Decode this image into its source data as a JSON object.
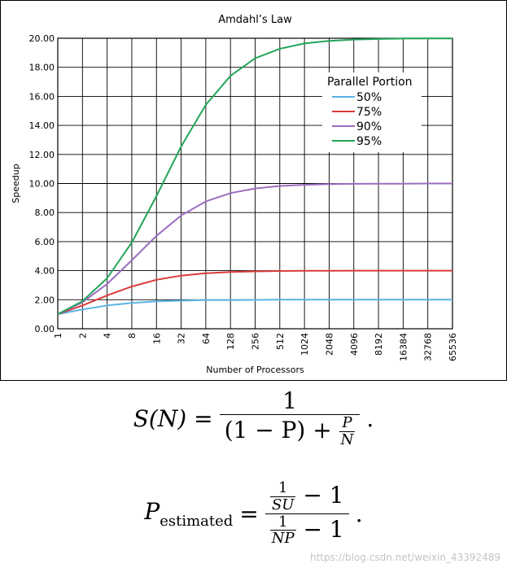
{
  "chart_data": {
    "type": "line",
    "title": "Amdahl’s Law",
    "xlabel": "Number of Processors",
    "ylabel": "Speedup",
    "xscale": "log2",
    "x": [
      1,
      2,
      4,
      8,
      16,
      32,
      64,
      128,
      256,
      512,
      1024,
      2048,
      4096,
      8192,
      16384,
      32768,
      65536
    ],
    "xtick_labels": [
      "1",
      "2",
      "4",
      "8",
      "16",
      "32",
      "64",
      "128",
      "256",
      "512",
      "1024",
      "2048",
      "4096",
      "8192",
      "16384",
      "32768",
      "65536"
    ],
    "ylim": [
      0,
      20
    ],
    "ytick_labels": [
      "0.00",
      "2.00",
      "4.00",
      "6.00",
      "8.00",
      "10.00",
      "12.00",
      "14.00",
      "16.00",
      "18.00",
      "20.00"
    ],
    "grid": true,
    "legend": {
      "title": "Parallel Portion",
      "placement": "upper-right"
    },
    "series": [
      {
        "name": "50%",
        "color": "#5ab4e5",
        "values": [
          1.0,
          1.33,
          1.6,
          1.78,
          1.88,
          1.94,
          1.97,
          1.98,
          1.99,
          2.0,
          2.0,
          2.0,
          2.0,
          2.0,
          2.0,
          2.0,
          2.0
        ]
      },
      {
        "name": "75%",
        "color": "#d93b3b",
        "values": [
          1.0,
          1.6,
          2.29,
          2.91,
          3.37,
          3.66,
          3.82,
          3.91,
          3.95,
          3.98,
          3.99,
          3.99,
          4.0,
          4.0,
          4.0,
          4.0,
          4.0
        ]
      },
      {
        "name": "90%",
        "color": "#9b6dbf",
        "values": [
          1.0,
          1.82,
          3.08,
          4.71,
          6.4,
          7.8,
          8.77,
          9.34,
          9.66,
          9.83,
          9.91,
          9.96,
          9.98,
          9.99,
          9.99,
          10.0,
          10.0
        ]
      },
      {
        "name": "95%",
        "color": "#21a55a",
        "values": [
          1.0,
          1.9,
          3.48,
          5.93,
          9.14,
          12.55,
          15.42,
          17.41,
          18.62,
          19.28,
          19.64,
          19.82,
          19.91,
          19.95,
          19.98,
          19.99,
          19.99
        ]
      }
    ]
  },
  "formulas": {
    "speedup": {
      "lhs": "S(N) =",
      "num": "1",
      "den_a": "(1 − P) +",
      "inner_num": "P",
      "inner_den": "N",
      "end": "."
    },
    "estimated": {
      "lhs_main": "P",
      "lhs_sub": "estimated",
      "eq": "=",
      "num_small_num": "1",
      "num_small_den": "SU",
      "num_rest": "− 1",
      "den_small_num": "1",
      "den_small_den": "NP",
      "den_rest": "− 1",
      "end": "."
    }
  },
  "watermark": "https://blog.csdn.net/weixin_43392489"
}
